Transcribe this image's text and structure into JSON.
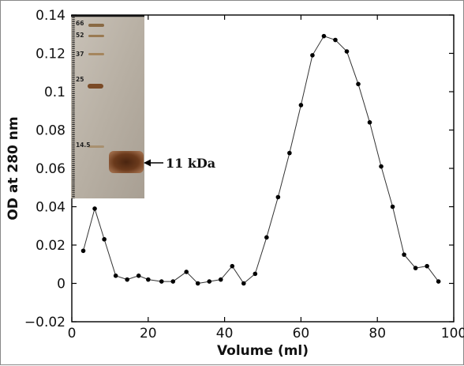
{
  "chart_data": {
    "type": "line",
    "title": "",
    "xlabel": "Volume (ml)",
    "ylabel": "OD at 280 nm",
    "xlim": [
      0,
      100
    ],
    "ylim": [
      -0.02,
      0.14
    ],
    "xticks": [
      0,
      20,
      40,
      60,
      80,
      100
    ],
    "yticks": [
      -0.02,
      0,
      0.02,
      0.04,
      0.06,
      0.08,
      0.1,
      0.12,
      0.14
    ],
    "ytick_labels": [
      "−0.02",
      "0",
      "0.02",
      "0.04",
      "0.06",
      "0.08",
      "0.1",
      "0.12",
      "0.14"
    ],
    "grid": false,
    "series": [
      {
        "marker": "circle",
        "color": "#000000",
        "points": [
          [
            3,
            0.017
          ],
          [
            6,
            0.039
          ],
          [
            8.5,
            0.023
          ],
          [
            11.5,
            0.004
          ],
          [
            14.5,
            0.002
          ],
          [
            17.5,
            0.004
          ],
          [
            20,
            0.002
          ],
          [
            23.5,
            0.001
          ],
          [
            26.5,
            0.001
          ],
          [
            30,
            0.006
          ],
          [
            33,
            0.0
          ],
          [
            36,
            0.001
          ],
          [
            39,
            0.002
          ],
          [
            42,
            0.009
          ],
          [
            45,
            0.0
          ],
          [
            48,
            0.005
          ],
          [
            51,
            0.024
          ],
          [
            54,
            0.045
          ],
          [
            57,
            0.068
          ],
          [
            60,
            0.093
          ],
          [
            63,
            0.119
          ],
          [
            66,
            0.129
          ],
          [
            69,
            0.127
          ],
          [
            72,
            0.121
          ],
          [
            75,
            0.104
          ],
          [
            78,
            0.084
          ],
          [
            81,
            0.061
          ],
          [
            84,
            0.04
          ],
          [
            87,
            0.015
          ],
          [
            90,
            0.008
          ],
          [
            93,
            0.009
          ],
          [
            96,
            0.001
          ]
        ]
      }
    ],
    "inset": {
      "ladder_labels": [
        "66",
        "52",
        "37",
        "25",
        "14.5"
      ],
      "annotation": "11 kDa"
    }
  }
}
